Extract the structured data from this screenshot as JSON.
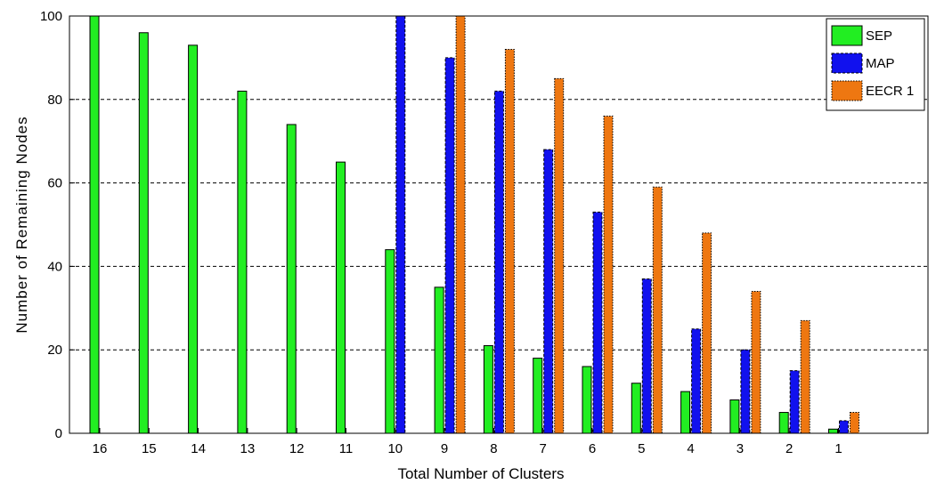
{
  "chart_data": {
    "type": "bar",
    "title": "",
    "xlabel": "Total Number of Clusters",
    "ylabel": "Number of Remaining Nodes",
    "categories": [
      "16",
      "15",
      "14",
      "13",
      "12",
      "11",
      "10",
      "9",
      "8",
      "7",
      "6",
      "5",
      "4",
      "3",
      "2",
      "1"
    ],
    "yticks": [
      "0",
      "20",
      "40",
      "60",
      "80",
      "100"
    ],
    "ylim": [
      0,
      100
    ],
    "grid": "y-dashed",
    "legend_position": "top-right",
    "series": [
      {
        "name": "SEP",
        "color": "#22ee22",
        "border": "solid",
        "values": [
          100,
          96,
          93,
          82,
          74,
          65,
          44,
          35,
          21,
          18,
          16,
          12,
          10,
          8,
          5,
          1
        ]
      },
      {
        "name": "MAP",
        "color": "#1111ee",
        "border": "dashed",
        "values": [
          null,
          null,
          null,
          null,
          null,
          null,
          100,
          90,
          82,
          68,
          53,
          37,
          25,
          20,
          15,
          3
        ]
      },
      {
        "name": "EECR 1",
        "color": "#ee7711",
        "border": "dotted",
        "values": [
          null,
          null,
          null,
          null,
          null,
          null,
          null,
          100,
          92,
          85,
          76,
          59,
          48,
          34,
          27,
          5
        ]
      }
    ]
  }
}
